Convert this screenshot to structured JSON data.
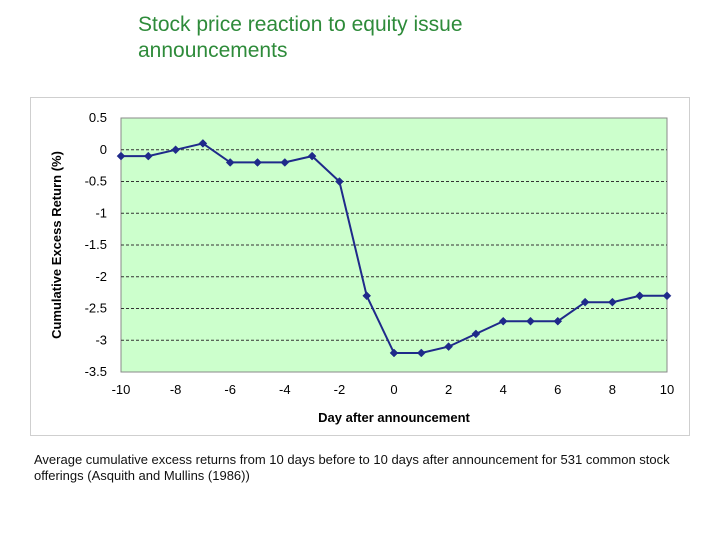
{
  "slide": {
    "title": "Stock price reaction to equity issue announcements",
    "caption": "Average cumulative excess returns from 10 days before to 10 days after announcement for 531 common stock offerings (Asquith and Mullins (1986))"
  },
  "chart_data": {
    "type": "line",
    "title": "",
    "xlabel": "Day after announcement",
    "ylabel": "Cumulative Excess Return (%)",
    "xlim": [
      -10,
      10
    ],
    "ylim": [
      -3.5,
      0.5
    ],
    "xticks": [
      -10,
      -8,
      -6,
      -4,
      -2,
      0,
      2,
      4,
      6,
      8,
      10
    ],
    "xtick_labels": [
      "-10",
      "-8",
      "-6",
      "-4",
      "-2",
      "0",
      "2",
      "4",
      "6",
      "8",
      "10"
    ],
    "yticks": [
      0.5,
      0,
      -0.5,
      -1,
      -1.5,
      -2,
      -2.5,
      -3,
      -3.5
    ],
    "ytick_labels": [
      "0.5",
      "0",
      "-0.5",
      "-1",
      "-1.5",
      "-2",
      "-2.5",
      "-3",
      "-3.5"
    ],
    "grid": true,
    "plot_background": "#ccffcc",
    "line_color": "#1f2a8a",
    "series": [
      {
        "name": "Cumulative excess return",
        "x": [
          -10,
          -9,
          -8,
          -7,
          -6,
          -5,
          -4,
          -3,
          -2,
          -1,
          0,
          1,
          2,
          3,
          4,
          5,
          6,
          7,
          8,
          9,
          10
        ],
        "y": [
          -0.1,
          -0.1,
          0.0,
          0.1,
          -0.2,
          -0.2,
          -0.2,
          -0.1,
          -0.5,
          -2.3,
          -3.2,
          -3.2,
          -3.1,
          -2.9,
          -2.7,
          -2.7,
          -2.7,
          -2.4,
          -2.4,
          -2.3,
          -2.3
        ]
      }
    ]
  }
}
